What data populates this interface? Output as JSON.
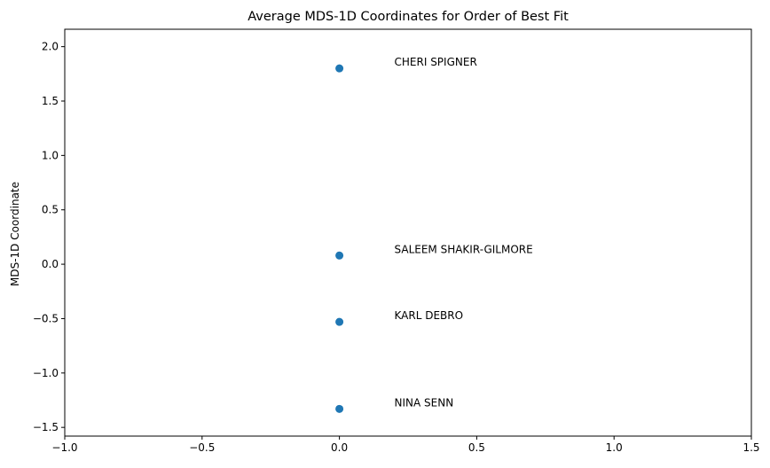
{
  "chart_data": {
    "type": "scatter",
    "title": "Average MDS-1D Coordinates for Order of Best Fit",
    "xlabel": "",
    "ylabel": "MDS-1D Coordinate",
    "xlim": [
      -1.0,
      1.5
    ],
    "ylim": [
      -1.58,
      2.16
    ],
    "x_ticks": [
      -1.0,
      -0.5,
      0.0,
      0.5,
      1.0,
      1.5
    ],
    "x_tick_labels": [
      "−1.0",
      "−0.5",
      "0.0",
      "0.5",
      "1.0",
      "1.5"
    ],
    "y_ticks": [
      -1.5,
      -1.0,
      -0.5,
      0.0,
      0.5,
      1.0,
      1.5,
      2.0
    ],
    "y_tick_labels": [
      "−1.5",
      "−1.0",
      "−0.5",
      "0.0",
      "0.5",
      "1.0",
      "1.5",
      "2.0"
    ],
    "grid": false,
    "legend": "none",
    "point_color": "#1f77b4",
    "label_x_offset": 0.2,
    "points": [
      {
        "label": "CHERI SPIGNER",
        "x": 0.0,
        "y": 1.8
      },
      {
        "label": "SALEEM SHAKIR-GILMORE",
        "x": 0.0,
        "y": 0.08
      },
      {
        "label": "KARL DEBRO",
        "x": 0.0,
        "y": -0.53
      },
      {
        "label": "NINA SENN",
        "x": 0.0,
        "y": -1.33
      }
    ]
  }
}
